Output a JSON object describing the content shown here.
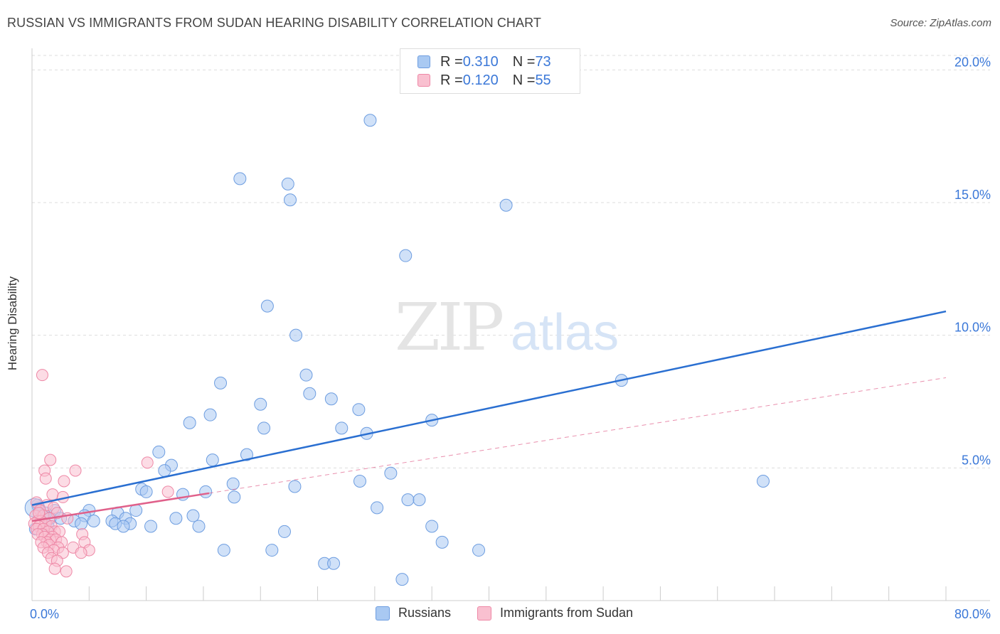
{
  "title": "RUSSIAN VS IMMIGRANTS FROM SUDAN HEARING DISABILITY CORRELATION CHART",
  "source": "Source: ZipAtlas.com",
  "watermark": {
    "zip": "ZIP",
    "atlas": "atlas"
  },
  "legend": {
    "russians": {
      "r_label": "R = ",
      "r_value": "0.310",
      "n_label": "N = ",
      "n_value": "73"
    },
    "sudan": {
      "r_label": "R = ",
      "r_value": "0.120",
      "n_label": "N = ",
      "n_value": "55"
    }
  },
  "bottom_legend": {
    "russians": "Russians",
    "sudan": "Immigrants from Sudan"
  },
  "colors": {
    "russians_fill": "#a9c9f2",
    "russians_stroke": "#6d9de0",
    "russians_line": "#2a6fd1",
    "sudan_fill": "#f9c0d0",
    "sudan_stroke": "#ee88a6",
    "sudan_line": "#e0608a",
    "axis_text": "#3b78d8",
    "grid": "#dddddd"
  },
  "chart_data": {
    "type": "scatter",
    "title": "RUSSIAN VS IMMIGRANTS FROM SUDAN HEARING DISABILITY CORRELATION CHART",
    "xlabel": "",
    "ylabel": "Hearing Disability",
    "xlim": [
      0,
      80
    ],
    "ylim": [
      0,
      21
    ],
    "x_tick_labels": [
      "0.0%",
      "80.0%"
    ],
    "y_ticks": [
      5,
      10,
      15,
      20
    ],
    "y_tick_labels": [
      "5.0%",
      "10.0%",
      "15.0%",
      "20.0%"
    ],
    "grid": true,
    "series": [
      {
        "name": "Russians",
        "points": [
          [
            29.6,
            18.1
          ],
          [
            18.2,
            15.9
          ],
          [
            22.4,
            15.7
          ],
          [
            22.6,
            15.1
          ],
          [
            41.5,
            14.9
          ],
          [
            32.7,
            13.0
          ],
          [
            20.6,
            11.1
          ],
          [
            23.1,
            10.0
          ],
          [
            51.6,
            8.3
          ],
          [
            24.0,
            8.5
          ],
          [
            16.5,
            8.2
          ],
          [
            24.3,
            7.8
          ],
          [
            26.2,
            7.6
          ],
          [
            20.0,
            7.4
          ],
          [
            28.6,
            7.2
          ],
          [
            15.6,
            7.0
          ],
          [
            13.8,
            6.7
          ],
          [
            35.0,
            6.8
          ],
          [
            27.1,
            6.5
          ],
          [
            20.3,
            6.5
          ],
          [
            29.3,
            6.3
          ],
          [
            11.1,
            5.6
          ],
          [
            18.8,
            5.5
          ],
          [
            15.8,
            5.3
          ],
          [
            12.2,
            5.1
          ],
          [
            11.6,
            4.9
          ],
          [
            31.4,
            4.8
          ],
          [
            28.7,
            4.5
          ],
          [
            17.6,
            4.4
          ],
          [
            64.0,
            4.5
          ],
          [
            23.0,
            4.3
          ],
          [
            9.6,
            4.2
          ],
          [
            10.0,
            4.1
          ],
          [
            15.2,
            4.1
          ],
          [
            13.2,
            4.0
          ],
          [
            17.7,
            3.9
          ],
          [
            32.9,
            3.8
          ],
          [
            33.9,
            3.8
          ],
          [
            30.2,
            3.5
          ],
          [
            9.1,
            3.4
          ],
          [
            5.0,
            3.4
          ],
          [
            2.0,
            3.4
          ],
          [
            1.2,
            3.3
          ],
          [
            0.6,
            3.5
          ],
          [
            7.5,
            3.3
          ],
          [
            1.6,
            3.1
          ],
          [
            2.5,
            3.1
          ],
          [
            4.6,
            3.2
          ],
          [
            8.2,
            3.1
          ],
          [
            12.6,
            3.1
          ],
          [
            14.1,
            3.2
          ],
          [
            3.7,
            3.0
          ],
          [
            5.4,
            3.0
          ],
          [
            7.0,
            3.0
          ],
          [
            8.6,
            2.9
          ],
          [
            4.3,
            2.9
          ],
          [
            7.3,
            2.9
          ],
          [
            10.4,
            2.8
          ],
          [
            14.6,
            2.8
          ],
          [
            8.0,
            2.8
          ],
          [
            1.4,
            2.8
          ],
          [
            0.3,
            2.7
          ],
          [
            22.1,
            2.6
          ],
          [
            35.0,
            2.8
          ],
          [
            35.9,
            2.2
          ],
          [
            16.8,
            1.9
          ],
          [
            21.0,
            1.9
          ],
          [
            39.1,
            1.9
          ],
          [
            25.6,
            1.4
          ],
          [
            26.4,
            1.4
          ],
          [
            32.4,
            0.8
          ],
          [
            0.5,
            3.6
          ],
          [
            0.9,
            3.2
          ]
        ]
      },
      {
        "name": "Immigrants from Sudan",
        "points": [
          [
            0.9,
            8.5
          ],
          [
            1.6,
            5.3
          ],
          [
            1.1,
            4.9
          ],
          [
            3.8,
            4.9
          ],
          [
            1.2,
            4.6
          ],
          [
            10.1,
            5.2
          ],
          [
            2.8,
            4.5
          ],
          [
            11.9,
            4.1
          ],
          [
            1.8,
            4.0
          ],
          [
            2.7,
            3.9
          ],
          [
            0.4,
            3.7
          ],
          [
            1.3,
            3.6
          ],
          [
            1.9,
            3.5
          ],
          [
            0.7,
            3.4
          ],
          [
            2.2,
            3.3
          ],
          [
            0.3,
            3.2
          ],
          [
            1.0,
            3.2
          ],
          [
            1.5,
            3.1
          ],
          [
            3.1,
            3.1
          ],
          [
            0.5,
            3.0
          ],
          [
            0.8,
            3.0
          ],
          [
            1.2,
            2.9
          ],
          [
            0.2,
            2.9
          ],
          [
            1.7,
            2.8
          ],
          [
            0.6,
            2.8
          ],
          [
            0.4,
            2.7
          ],
          [
            1.0,
            2.7
          ],
          [
            2.0,
            2.6
          ],
          [
            1.4,
            2.6
          ],
          [
            0.9,
            2.5
          ],
          [
            2.4,
            2.6
          ],
          [
            1.8,
            2.4
          ],
          [
            0.5,
            2.5
          ],
          [
            1.1,
            2.4
          ],
          [
            1.6,
            2.3
          ],
          [
            4.4,
            2.5
          ],
          [
            2.1,
            2.3
          ],
          [
            1.3,
            2.2
          ],
          [
            0.8,
            2.2
          ],
          [
            2.6,
            2.2
          ],
          [
            4.6,
            2.2
          ],
          [
            1.5,
            2.1
          ],
          [
            1.0,
            2.0
          ],
          [
            2.3,
            2.0
          ],
          [
            3.6,
            2.0
          ],
          [
            1.9,
            1.9
          ],
          [
            1.4,
            1.8
          ],
          [
            5.0,
            1.9
          ],
          [
            2.7,
            1.8
          ],
          [
            4.3,
            1.8
          ],
          [
            1.7,
            1.6
          ],
          [
            2.2,
            1.5
          ],
          [
            2.0,
            1.2
          ],
          [
            3.0,
            1.1
          ],
          [
            0.6,
            3.3
          ]
        ]
      }
    ],
    "trend_lines": [
      {
        "name": "Russians",
        "x": [
          0,
          80
        ],
        "y": [
          3.6,
          10.9
        ]
      },
      {
        "name": "Immigrants from Sudan",
        "x": [
          0,
          80
        ],
        "y": [
          3.0,
          8.4
        ],
        "solid_until": 15.5
      }
    ]
  }
}
